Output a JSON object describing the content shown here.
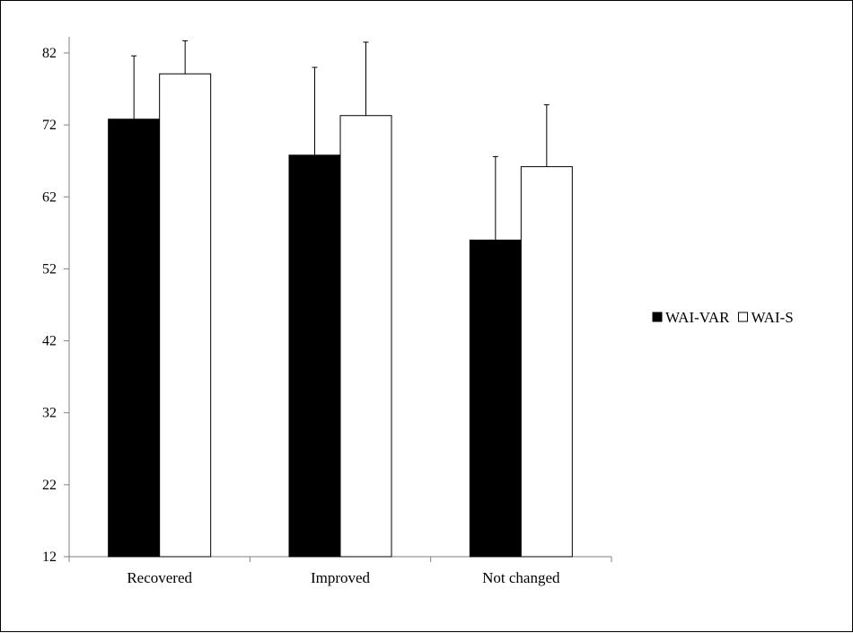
{
  "chart_data": {
    "type": "bar",
    "categories": [
      "Recovered",
      "Improved",
      "Not changed"
    ],
    "series": [
      {
        "name": "WAI-VAR",
        "values": [
          72.8,
          67.8,
          56.0
        ],
        "errors": [
          8.8,
          12.2,
          11.6
        ],
        "color": "#000000"
      },
      {
        "name": "WAI-S",
        "values": [
          79.1,
          73.3,
          66.2
        ],
        "errors": [
          4.6,
          10.2,
          8.6
        ],
        "color": "#ffffff"
      }
    ],
    "yticks": [
      "12",
      "22",
      "32",
      "42",
      "52",
      "62",
      "72",
      "82"
    ],
    "ylim": [
      12,
      84
    ],
    "xlabel": "",
    "ylabel": "",
    "title": "",
    "grid": false,
    "legend_position": "right"
  }
}
